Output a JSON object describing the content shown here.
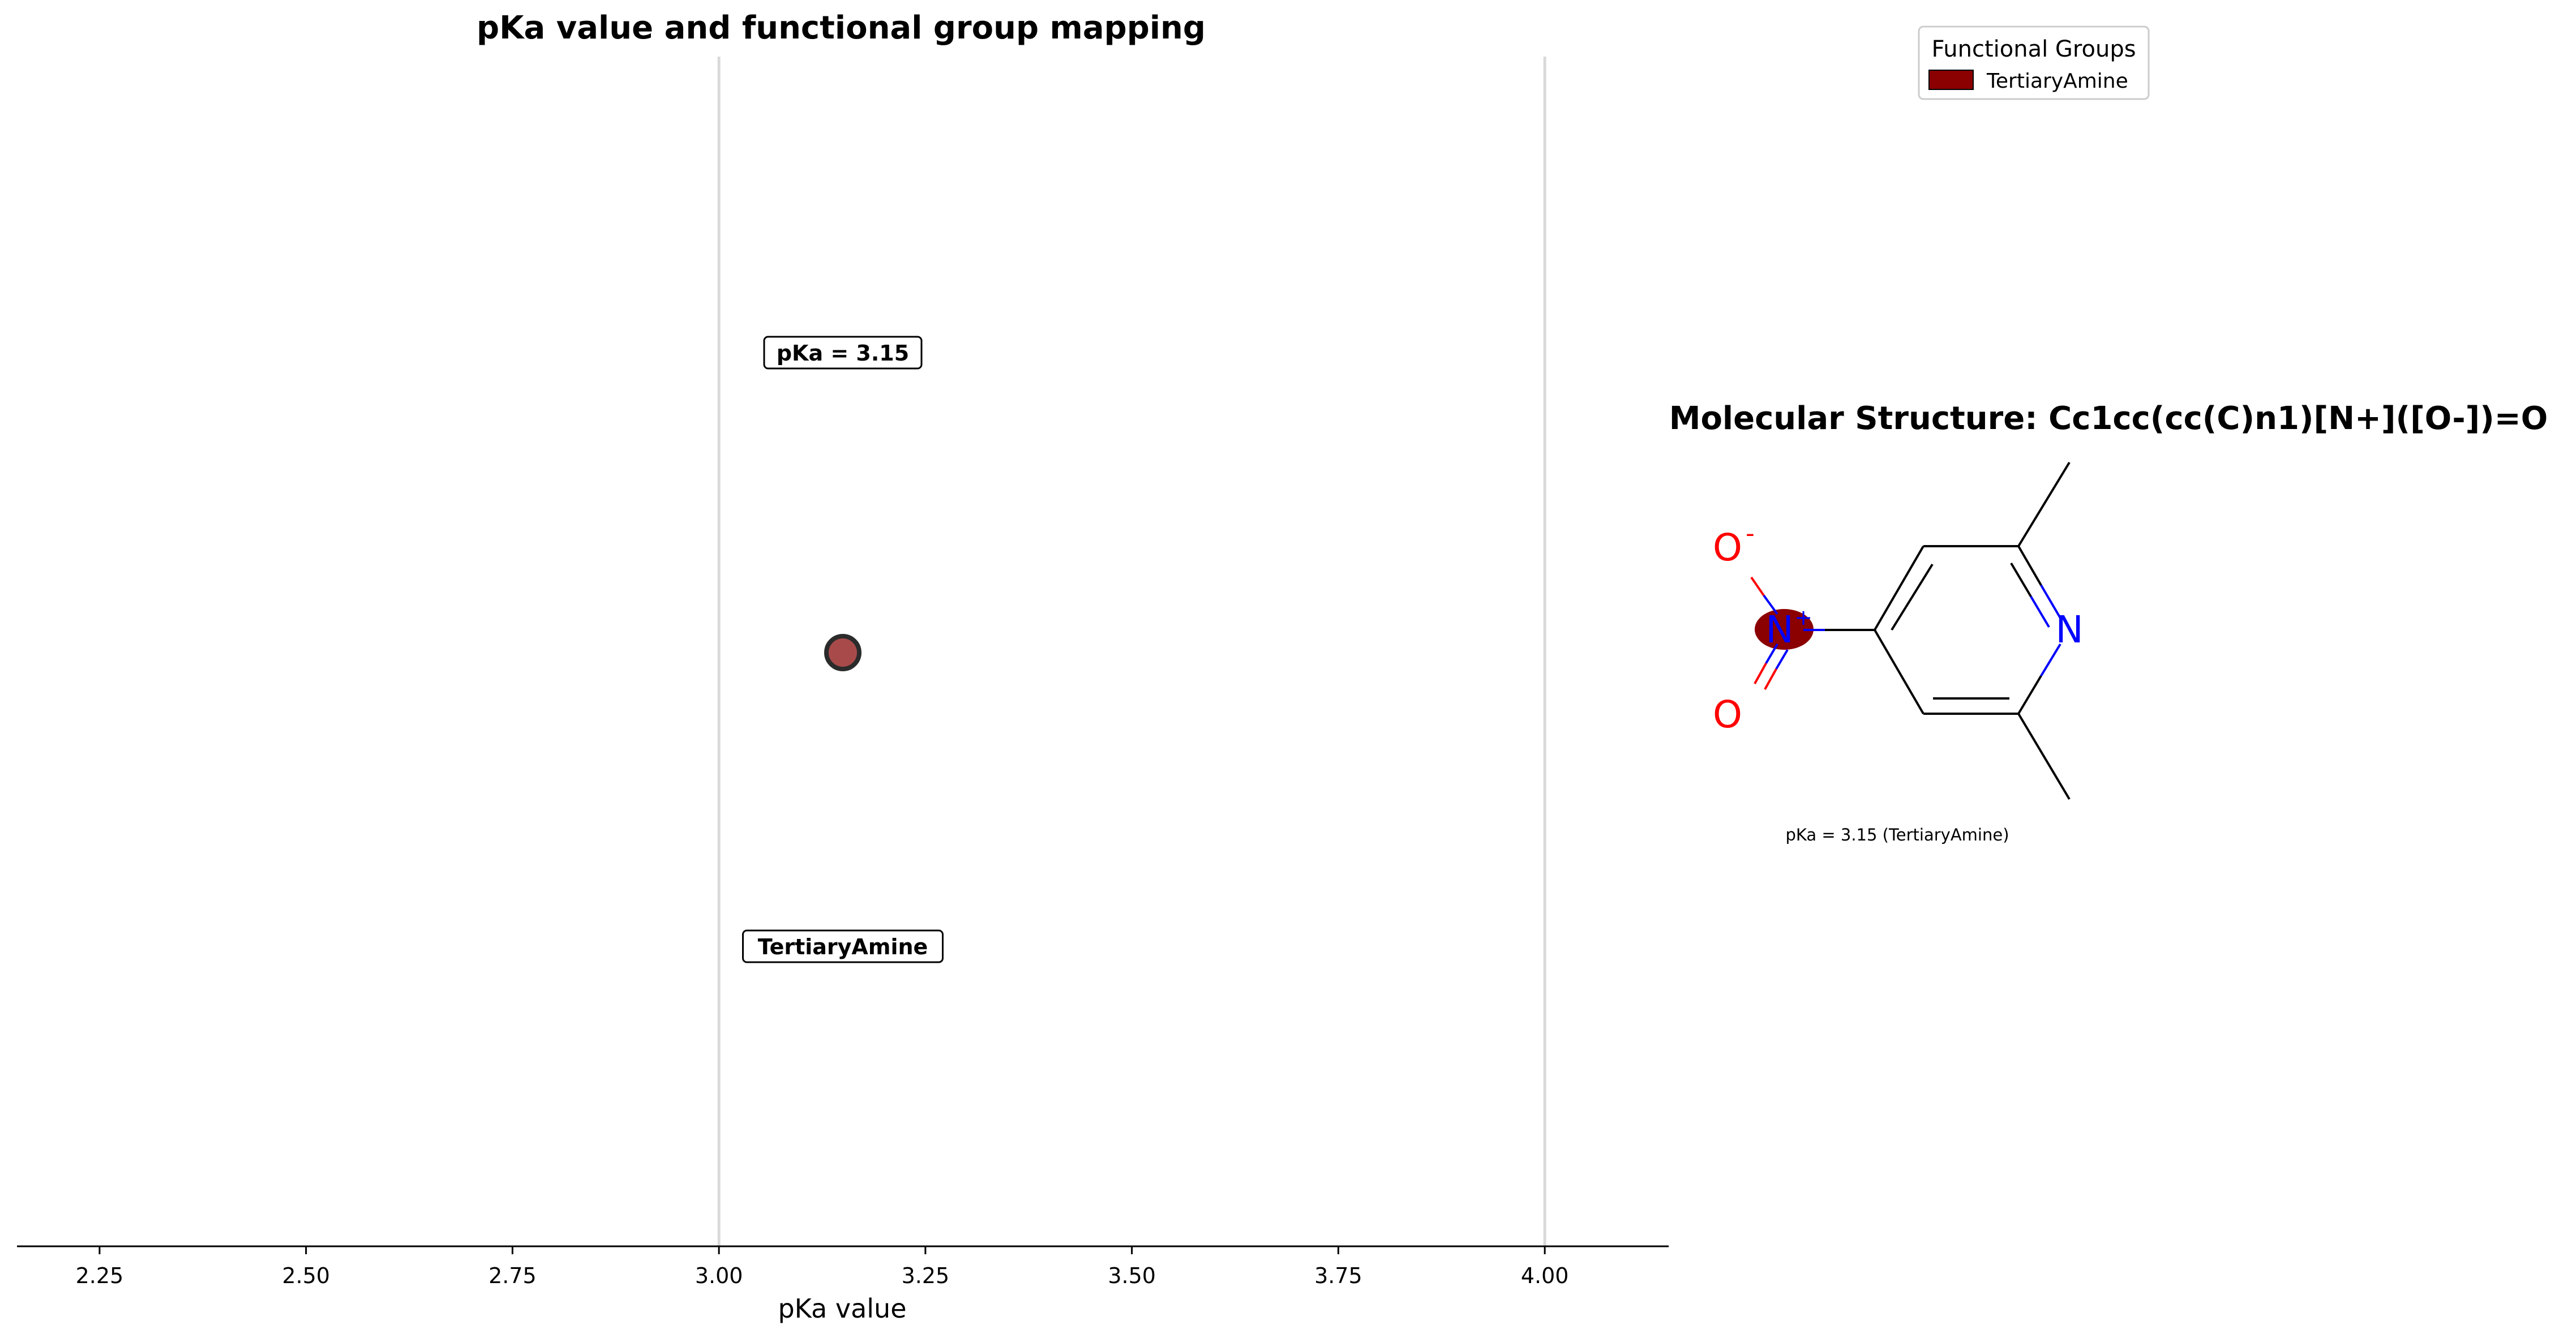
{
  "chart_data": [
    {
      "type": "scatter",
      "title": "pKa value and functional group mapping",
      "xlabel": "pKa value",
      "ylabel": "",
      "xlim": [
        2.15,
        4.15
      ],
      "xticks": [
        2.25,
        2.5,
        2.75,
        3.0,
        3.25,
        3.5,
        3.75,
        4.0
      ],
      "xtick_labels": [
        "2.25",
        "2.50",
        "2.75",
        "3.00",
        "3.25",
        "3.50",
        "3.75",
        "4.00"
      ],
      "reference_lines_x": [
        3.0,
        4.0
      ],
      "points": [
        {
          "x": 3.15,
          "group": "TertiaryAmine",
          "value_label": "pKa = 3.15",
          "group_label": "TertiaryAmine"
        }
      ],
      "marker_color": "#A94A4A",
      "reference_line_color": "#D9D9D9",
      "grid": false,
      "legend": {
        "title": "Functional Groups",
        "placement": "top-right",
        "entries": [
          {
            "label": "TertiaryAmine",
            "color": "#8B0000"
          }
        ]
      }
    }
  ],
  "molecule": {
    "title": "Molecular Structure: Cc1cc(cc(C)n1)[N+]([O-])=O",
    "caption": "pKa = 3.15 (TertiaryAmine)",
    "atoms": {
      "ring_nitrogen": "N",
      "nitro_nitrogen": "N",
      "nitro_charge": "+",
      "oxide_oxygen": "O",
      "oxide_charge": "-",
      "double_bond_oxygen": "O"
    },
    "highlight_color": "#8B0000"
  },
  "colors": {
    "bond": "#000000",
    "nitrogen": "#0000FF",
    "oxygen": "#FF0000"
  }
}
